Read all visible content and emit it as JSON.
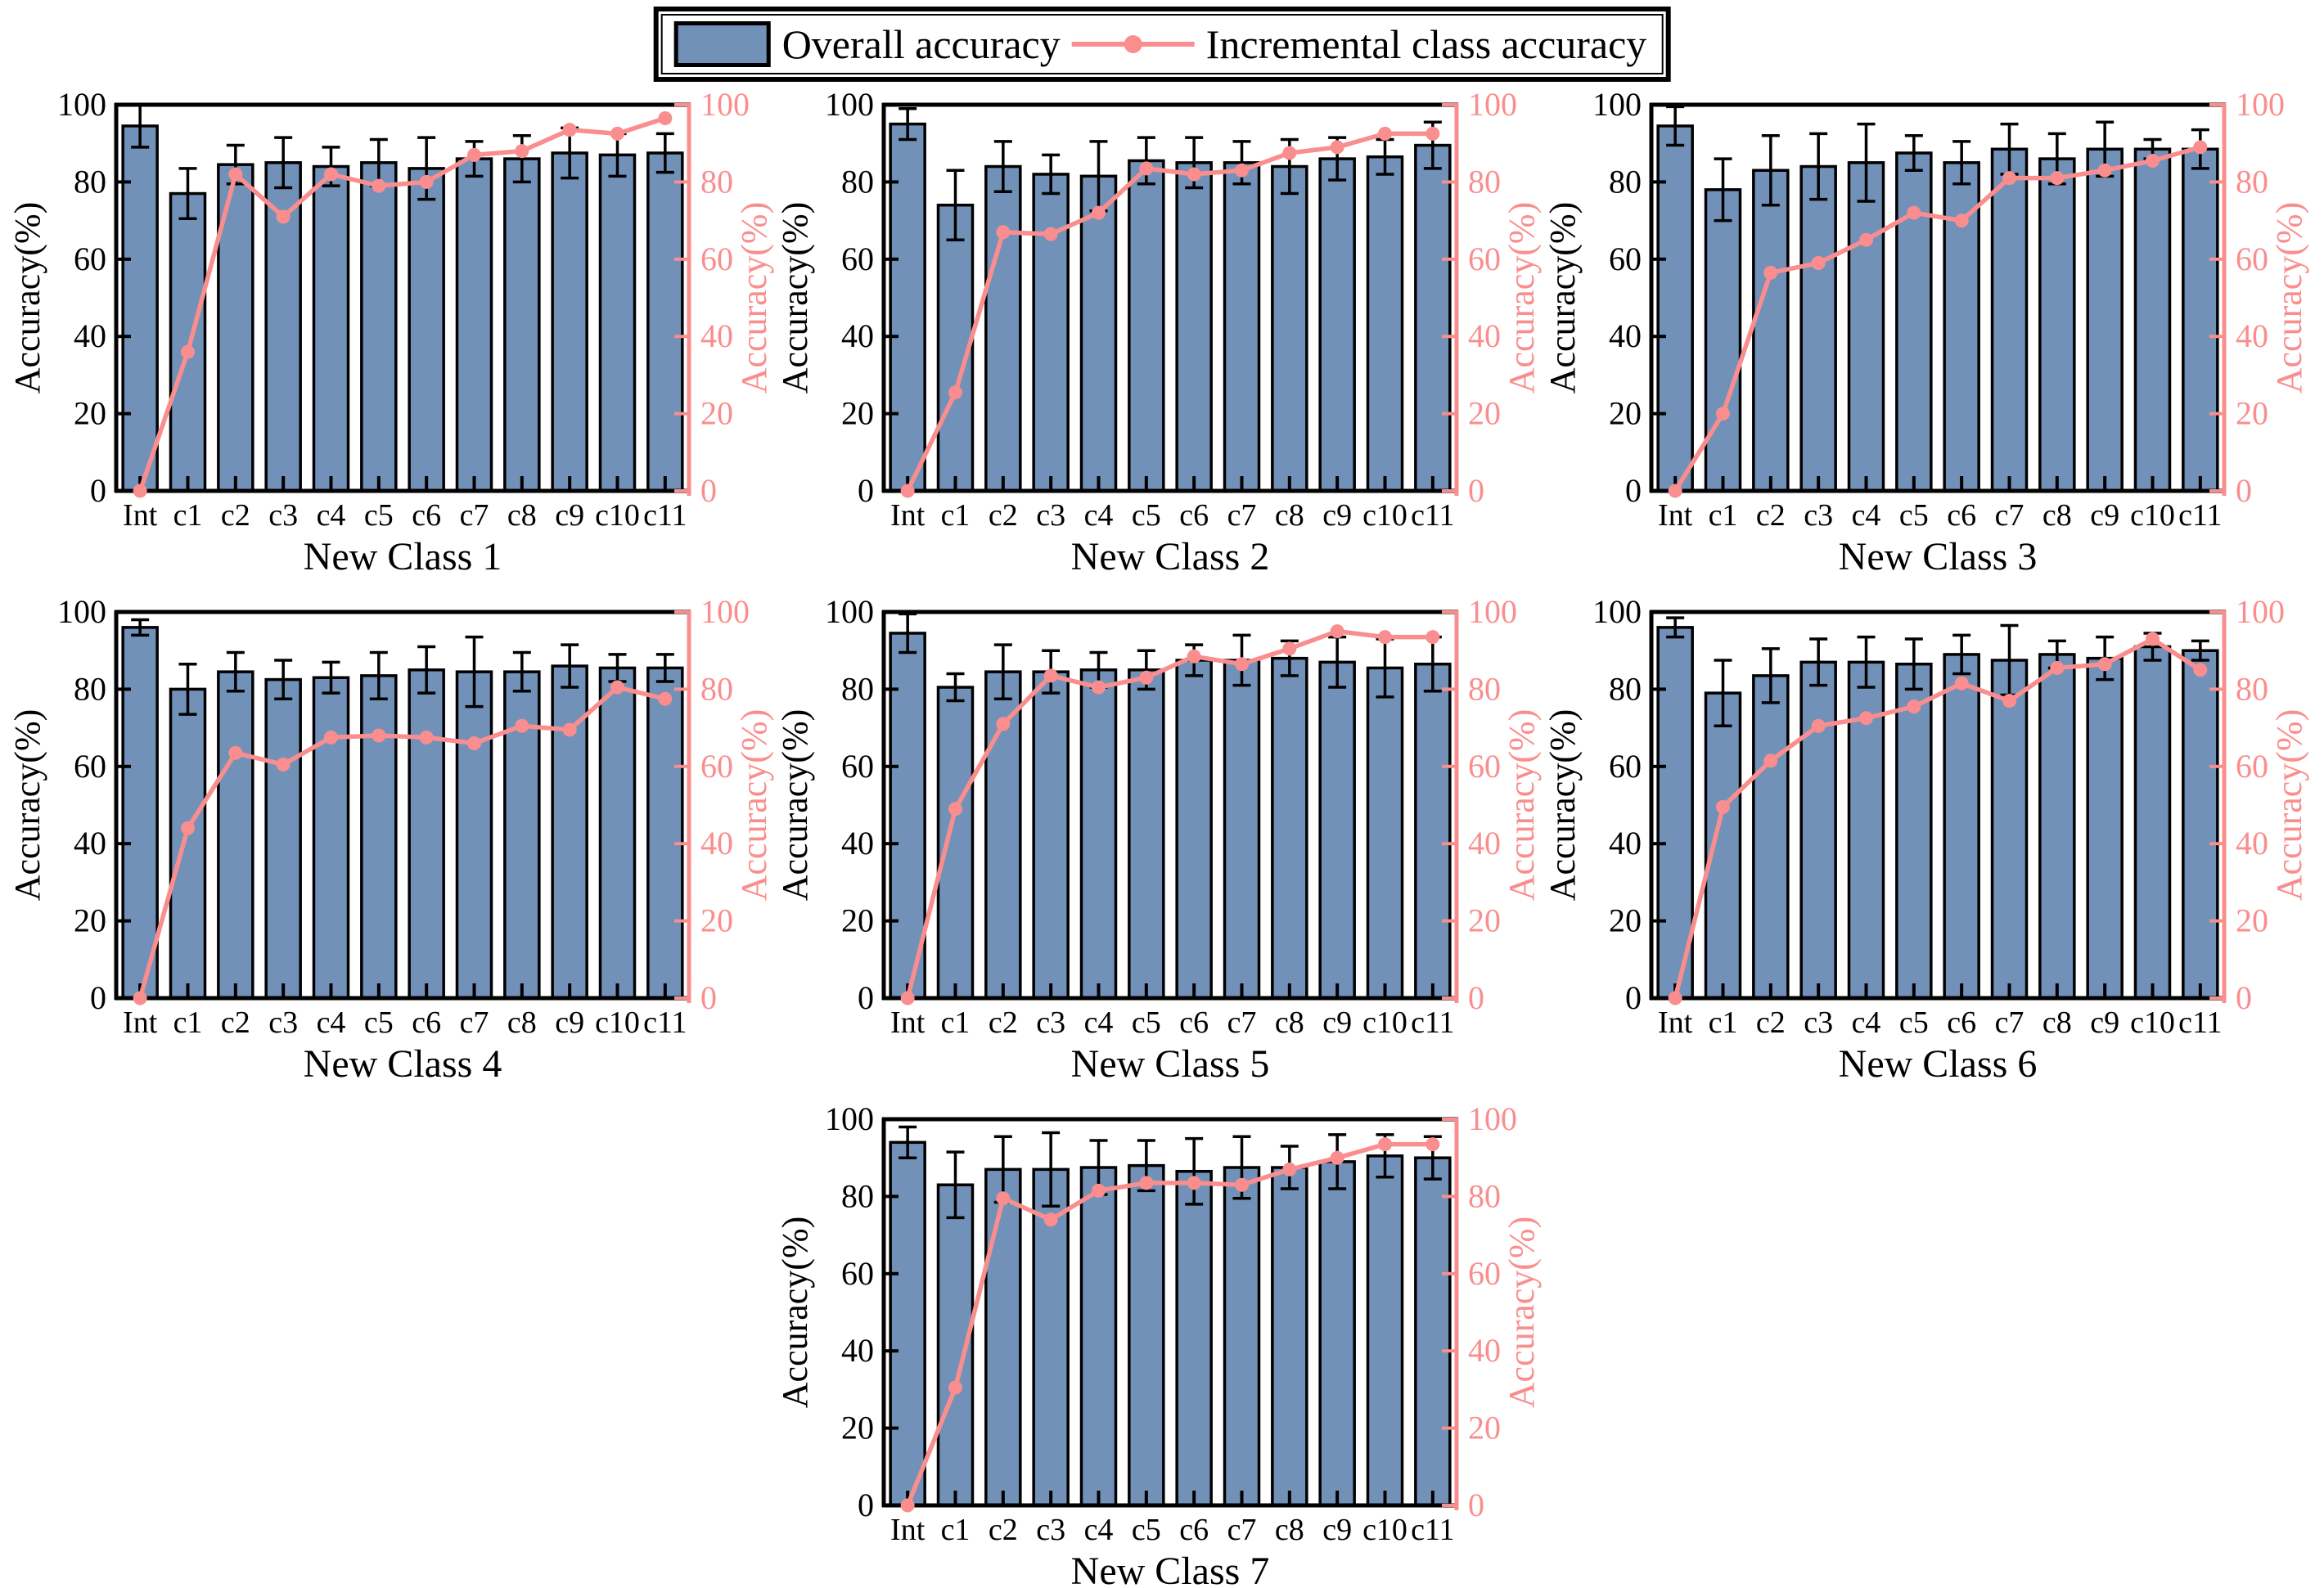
{
  "legend": {
    "overall_label": "Overall accuracy",
    "incremental_label": "Incremental class accuracy"
  },
  "colors": {
    "bar_fill": "#7291B8",
    "bar_edge": "#000000",
    "line_pink": "#FA8E8E",
    "axis_black": "#000000"
  },
  "axes": {
    "ylabel_left": "Accuracy(%)",
    "ylabel_right": "Accuracy(%)",
    "ylim": [
      0,
      100
    ],
    "yticks": [
      0,
      20,
      40,
      60,
      80,
      100
    ],
    "grid": false
  },
  "categories": [
    "Int",
    "c1",
    "c2",
    "c3",
    "c4",
    "c5",
    "c6",
    "c7",
    "c8",
    "c9",
    "c10",
    "c11"
  ],
  "chart_data": [
    {
      "type": "bar",
      "title": "New Class 1",
      "series": [
        {
          "name": "Overall accuracy",
          "type": "bar",
          "values": [
            94.5,
            77,
            84.5,
            85,
            84,
            85,
            83.5,
            86,
            86,
            87.5,
            87,
            87.5
          ],
          "errors": [
            5.5,
            6.5,
            5,
            6.5,
            5,
            6,
            8,
            4.5,
            6,
            6.5,
            5.5,
            5
          ]
        },
        {
          "name": "Incremental class accuracy",
          "type": "line",
          "values": [
            0,
            36,
            82,
            71,
            82,
            79,
            80,
            87,
            88,
            93.5,
            92.5,
            96.5
          ]
        }
      ]
    },
    {
      "type": "bar",
      "title": "New Class 2",
      "series": [
        {
          "name": "Overall accuracy",
          "type": "bar",
          "values": [
            95,
            74,
            84,
            82,
            81.5,
            85.5,
            85,
            85,
            84,
            86,
            86.5,
            89.5
          ],
          "errors": [
            4,
            9,
            6.5,
            5,
            9,
            6,
            6.5,
            5.5,
            7,
            5.5,
            4.5,
            6
          ]
        },
        {
          "name": "Incremental class accuracy",
          "type": "line",
          "values": [
            0,
            25.5,
            67,
            66.5,
            72,
            83.5,
            82,
            83,
            87.5,
            89,
            92.5,
            92.5
          ]
        }
      ]
    },
    {
      "type": "bar",
      "title": "New Class 3",
      "series": [
        {
          "name": "Overall accuracy",
          "type": "bar",
          "values": [
            94.5,
            78,
            83,
            84,
            85,
            87.5,
            85,
            88.5,
            86,
            88.5,
            88.5,
            88.5
          ],
          "errors": [
            5,
            8,
            9,
            8.5,
            10,
            4.5,
            5.5,
            6.5,
            6.5,
            7,
            2.5,
            5
          ]
        },
        {
          "name": "Incremental class accuracy",
          "type": "line",
          "values": [
            0,
            20,
            56.5,
            59,
            65,
            72,
            70,
            81,
            81,
            83,
            85.5,
            89
          ]
        }
      ]
    },
    {
      "type": "bar",
      "title": "New Class 4",
      "series": [
        {
          "name": "Overall accuracy",
          "type": "bar",
          "values": [
            96,
            80,
            84.5,
            82.5,
            83,
            83.5,
            85,
            84.5,
            84.5,
            86,
            85.5,
            85.5
          ],
          "errors": [
            2,
            6.5,
            5,
            5,
            4,
            6,
            6,
            9,
            5,
            5.5,
            3.5,
            3.5
          ]
        },
        {
          "name": "Incremental class accuracy",
          "type": "line",
          "values": [
            0,
            44,
            63.5,
            60.5,
            67.5,
            68,
            67.5,
            66,
            70.5,
            69.5,
            80.5,
            77.5
          ]
        }
      ]
    },
    {
      "type": "bar",
      "title": "New Class 5",
      "series": [
        {
          "name": "Overall accuracy",
          "type": "bar",
          "values": [
            94.5,
            80.5,
            84.5,
            84.5,
            85,
            85,
            87.5,
            87.5,
            88,
            87,
            85.5,
            86.5
          ],
          "errors": [
            5,
            3.5,
            7,
            5.5,
            4.5,
            5,
            4,
            6.5,
            4.5,
            6.5,
            7.5,
            7
          ]
        },
        {
          "name": "Incremental class accuracy",
          "type": "line",
          "values": [
            0,
            49,
            71,
            83.5,
            80.5,
            83,
            88.5,
            86.5,
            90.5,
            95,
            93.5,
            93.5
          ]
        }
      ]
    },
    {
      "type": "bar",
      "title": "New Class 6",
      "series": [
        {
          "name": "Overall accuracy",
          "type": "bar",
          "values": [
            96,
            79,
            83.5,
            87,
            87,
            86.5,
            89,
            87.5,
            89,
            88,
            91,
            90
          ],
          "errors": [
            2.5,
            8.5,
            7,
            6,
            6.5,
            6.5,
            5,
            9,
            3.5,
            5.5,
            3.5,
            2.5
          ]
        },
        {
          "name": "Incremental class accuracy",
          "type": "line",
          "values": [
            0,
            49.5,
            61.5,
            70.5,
            72.5,
            75.5,
            81.5,
            77,
            85.5,
            86.5,
            93,
            85
          ]
        }
      ]
    },
    {
      "type": "bar",
      "title": "New Class 7",
      "series": [
        {
          "name": "Overall accuracy",
          "type": "bar",
          "values": [
            94,
            83,
            87,
            87,
            87.5,
            88,
            86.5,
            87.5,
            87.5,
            89,
            90.5,
            90
          ],
          "errors": [
            4,
            8.5,
            8.5,
            9.5,
            7,
            6.5,
            8.5,
            8,
            5.5,
            7,
            5.5,
            5.5
          ]
        },
        {
          "name": "Incremental class accuracy",
          "type": "line",
          "values": [
            0,
            30.5,
            79.5,
            74,
            81.5,
            83.5,
            83.5,
            83,
            87,
            90,
            93.5,
            93.5
          ]
        }
      ]
    }
  ]
}
